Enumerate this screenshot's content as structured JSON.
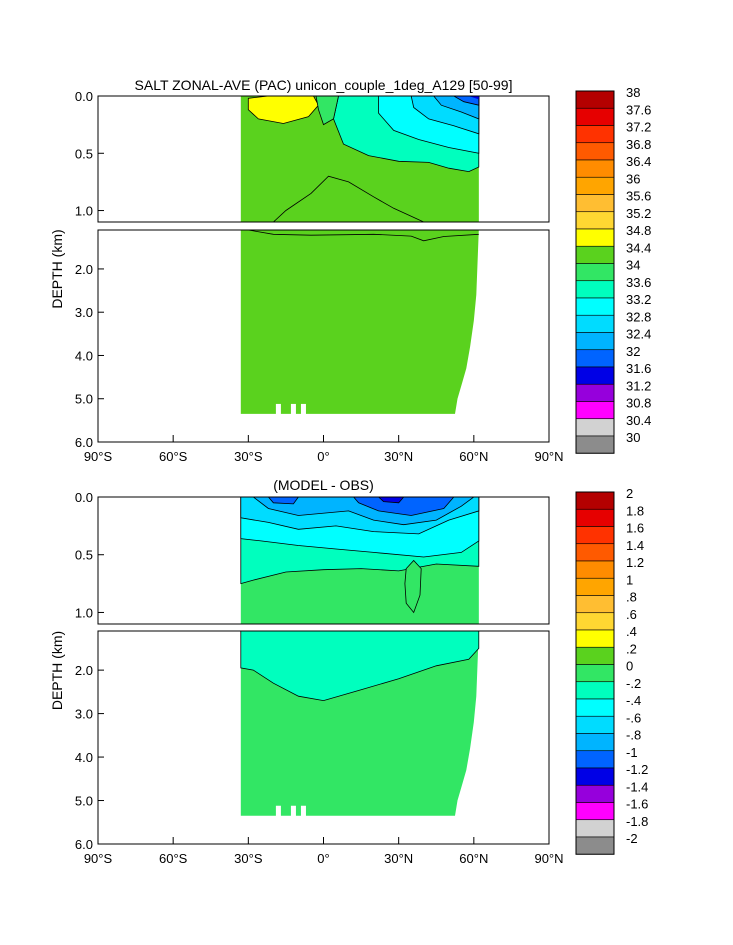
{
  "chart_data": [
    {
      "type": "contour",
      "title": "SALT ZONAL-AVE (PAC) unicon_couple_1deg_A129 [50-99]",
      "ylabel": "DEPTH (km)",
      "xlabel": "",
      "x_ticks": [
        "90°S",
        "60°S",
        "30°S",
        "0°",
        "30°N",
        "60°N",
        "90°N"
      ],
      "x_tick_values": [
        -90,
        -60,
        -30,
        0,
        30,
        60,
        90
      ],
      "upper_y_ticks": [
        "0.0",
        "0.5",
        "1.0"
      ],
      "upper_y_values": [
        0.0,
        0.5,
        1.0
      ],
      "lower_y_ticks": [
        "2.0",
        "3.0",
        "4.0",
        "5.0",
        "6.0"
      ],
      "lower_y_values": [
        2.0,
        3.0,
        4.0,
        5.0,
        6.0
      ],
      "colorbar_labels": [
        "38",
        "37.6",
        "37.2",
        "36.8",
        "36.4",
        "36",
        "35.6",
        "35.2",
        "34.8",
        "34.4",
        "34",
        "33.6",
        "33.2",
        "32.8",
        "32.4",
        "32",
        "31.6",
        "31.2",
        "30.8",
        "30.4",
        "30"
      ],
      "colorbar_colors": [
        "#b40000",
        "#e60000",
        "#ff3200",
        "#ff5a00",
        "#ff8c00",
        "#ffa500",
        "#ffbe32",
        "#ffd732",
        "#ffff00",
        "#5ad21e",
        "#32e664",
        "#00ffbe",
        "#00ffff",
        "#00dcff",
        "#00b4ff",
        "#0064ff",
        "#0000e6",
        "#9600dc",
        "#ff00ff",
        "#d2d2d2",
        "#8c8c8c"
      ],
      "data_extent": {
        "lat_min": -33,
        "lat_max": 62,
        "depth_max": 5.35
      },
      "regions": [
        {
          "label": "34.4-34.8",
          "color": "#5ad21e",
          "where": "bulk of basin below ~0.2 km"
        },
        {
          "label": "34.8-35.2",
          "color": "#ffff00",
          "where": "subtropical South Pacific surface maximum (~30S-10S, 0-0.2 km)"
        },
        {
          "label": "33.6-34.0",
          "color": "#00ffbe",
          "where": "North Pacific intermediate water (~5N-60N, 0.1-0.65 km)"
        },
        {
          "label": "32.4-33.6",
          "color": "#00dcff",
          "where": "subarctic North Pacific surface (40N-60N, 0-0.3 km)"
        }
      ]
    },
    {
      "type": "contour",
      "title": "(MODEL - OBS)",
      "ylabel": "DEPTH (km)",
      "xlabel": "",
      "x_ticks": [
        "90°S",
        "60°S",
        "30°S",
        "0°",
        "30°N",
        "60°N",
        "90°N"
      ],
      "x_tick_values": [
        -90,
        -60,
        -30,
        0,
        30,
        60,
        90
      ],
      "upper_y_ticks": [
        "0.0",
        "0.5",
        "1.0"
      ],
      "upper_y_values": [
        0.0,
        0.5,
        1.0
      ],
      "lower_y_ticks": [
        "2.0",
        "3.0",
        "4.0",
        "5.0",
        "6.0"
      ],
      "lower_y_values": [
        2.0,
        3.0,
        4.0,
        5.0,
        6.0
      ],
      "colorbar_labels": [
        "2",
        "1.8",
        "1.6",
        "1.4",
        "1.2",
        "1",
        ".8",
        ".6",
        ".4",
        ".2",
        "0",
        "-.2",
        "-.4",
        "-.6",
        "-.8",
        "-1",
        "-1.2",
        "-1.4",
        "-1.6",
        "-1.8",
        "-2"
      ],
      "colorbar_colors": [
        "#b40000",
        "#e60000",
        "#ff3200",
        "#ff5a00",
        "#ff8c00",
        "#ffa500",
        "#ffbe32",
        "#ffd732",
        "#ffff00",
        "#5ad21e",
        "#32e664",
        "#00ffbe",
        "#00ffff",
        "#00dcff",
        "#00b4ff",
        "#0064ff",
        "#0000e6",
        "#9600dc",
        "#ff00ff",
        "#d2d2d2",
        "#8c8c8c"
      ],
      "data_extent": {
        "lat_min": -33,
        "lat_max": 62,
        "depth_max": 5.35
      },
      "regions": [
        {
          "label": "0 to 0.2",
          "color": "#32e664",
          "where": "deep ocean below ~2-2.7 km; lens near 35N at 0.55-1.0 km"
        },
        {
          "label": "-0.2 to 0",
          "color": "#00ffbe",
          "where": "intermediate depths 0.7-2.7 km"
        },
        {
          "label": "-0.4 to -0.2",
          "color": "#00ffff",
          "where": "upper ocean 0.1-0.7 km"
        },
        {
          "label": "-0.8 to -0.4",
          "color": "#00dcff",
          "where": "near surface 0-0.3 km, strongest 15N-45N"
        }
      ]
    }
  ]
}
